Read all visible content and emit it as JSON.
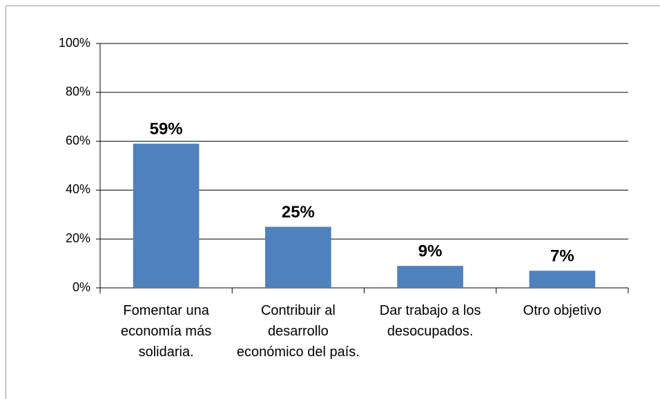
{
  "chart_data": {
    "type": "bar",
    "categories": [
      "Fomentar una economía más solidaria.",
      "Contribuir al desarrollo económico del país.",
      "Dar trabajo a los desocupados.",
      "Otro objetivo"
    ],
    "values": [
      59,
      25,
      9,
      7
    ],
    "value_labels": [
      "59%",
      "25%",
      "9%",
      "7%"
    ],
    "color": "#4f81bd",
    "ylim": [
      0,
      100
    ],
    "yticks": [
      {
        "value": 0,
        "label": "0%"
      },
      {
        "value": 20,
        "label": "20%"
      },
      {
        "value": 40,
        "label": "40%"
      },
      {
        "value": 60,
        "label": "60%"
      },
      {
        "value": 80,
        "label": "80%"
      },
      {
        "value": 100,
        "label": "100%"
      }
    ],
    "grid": true
  }
}
